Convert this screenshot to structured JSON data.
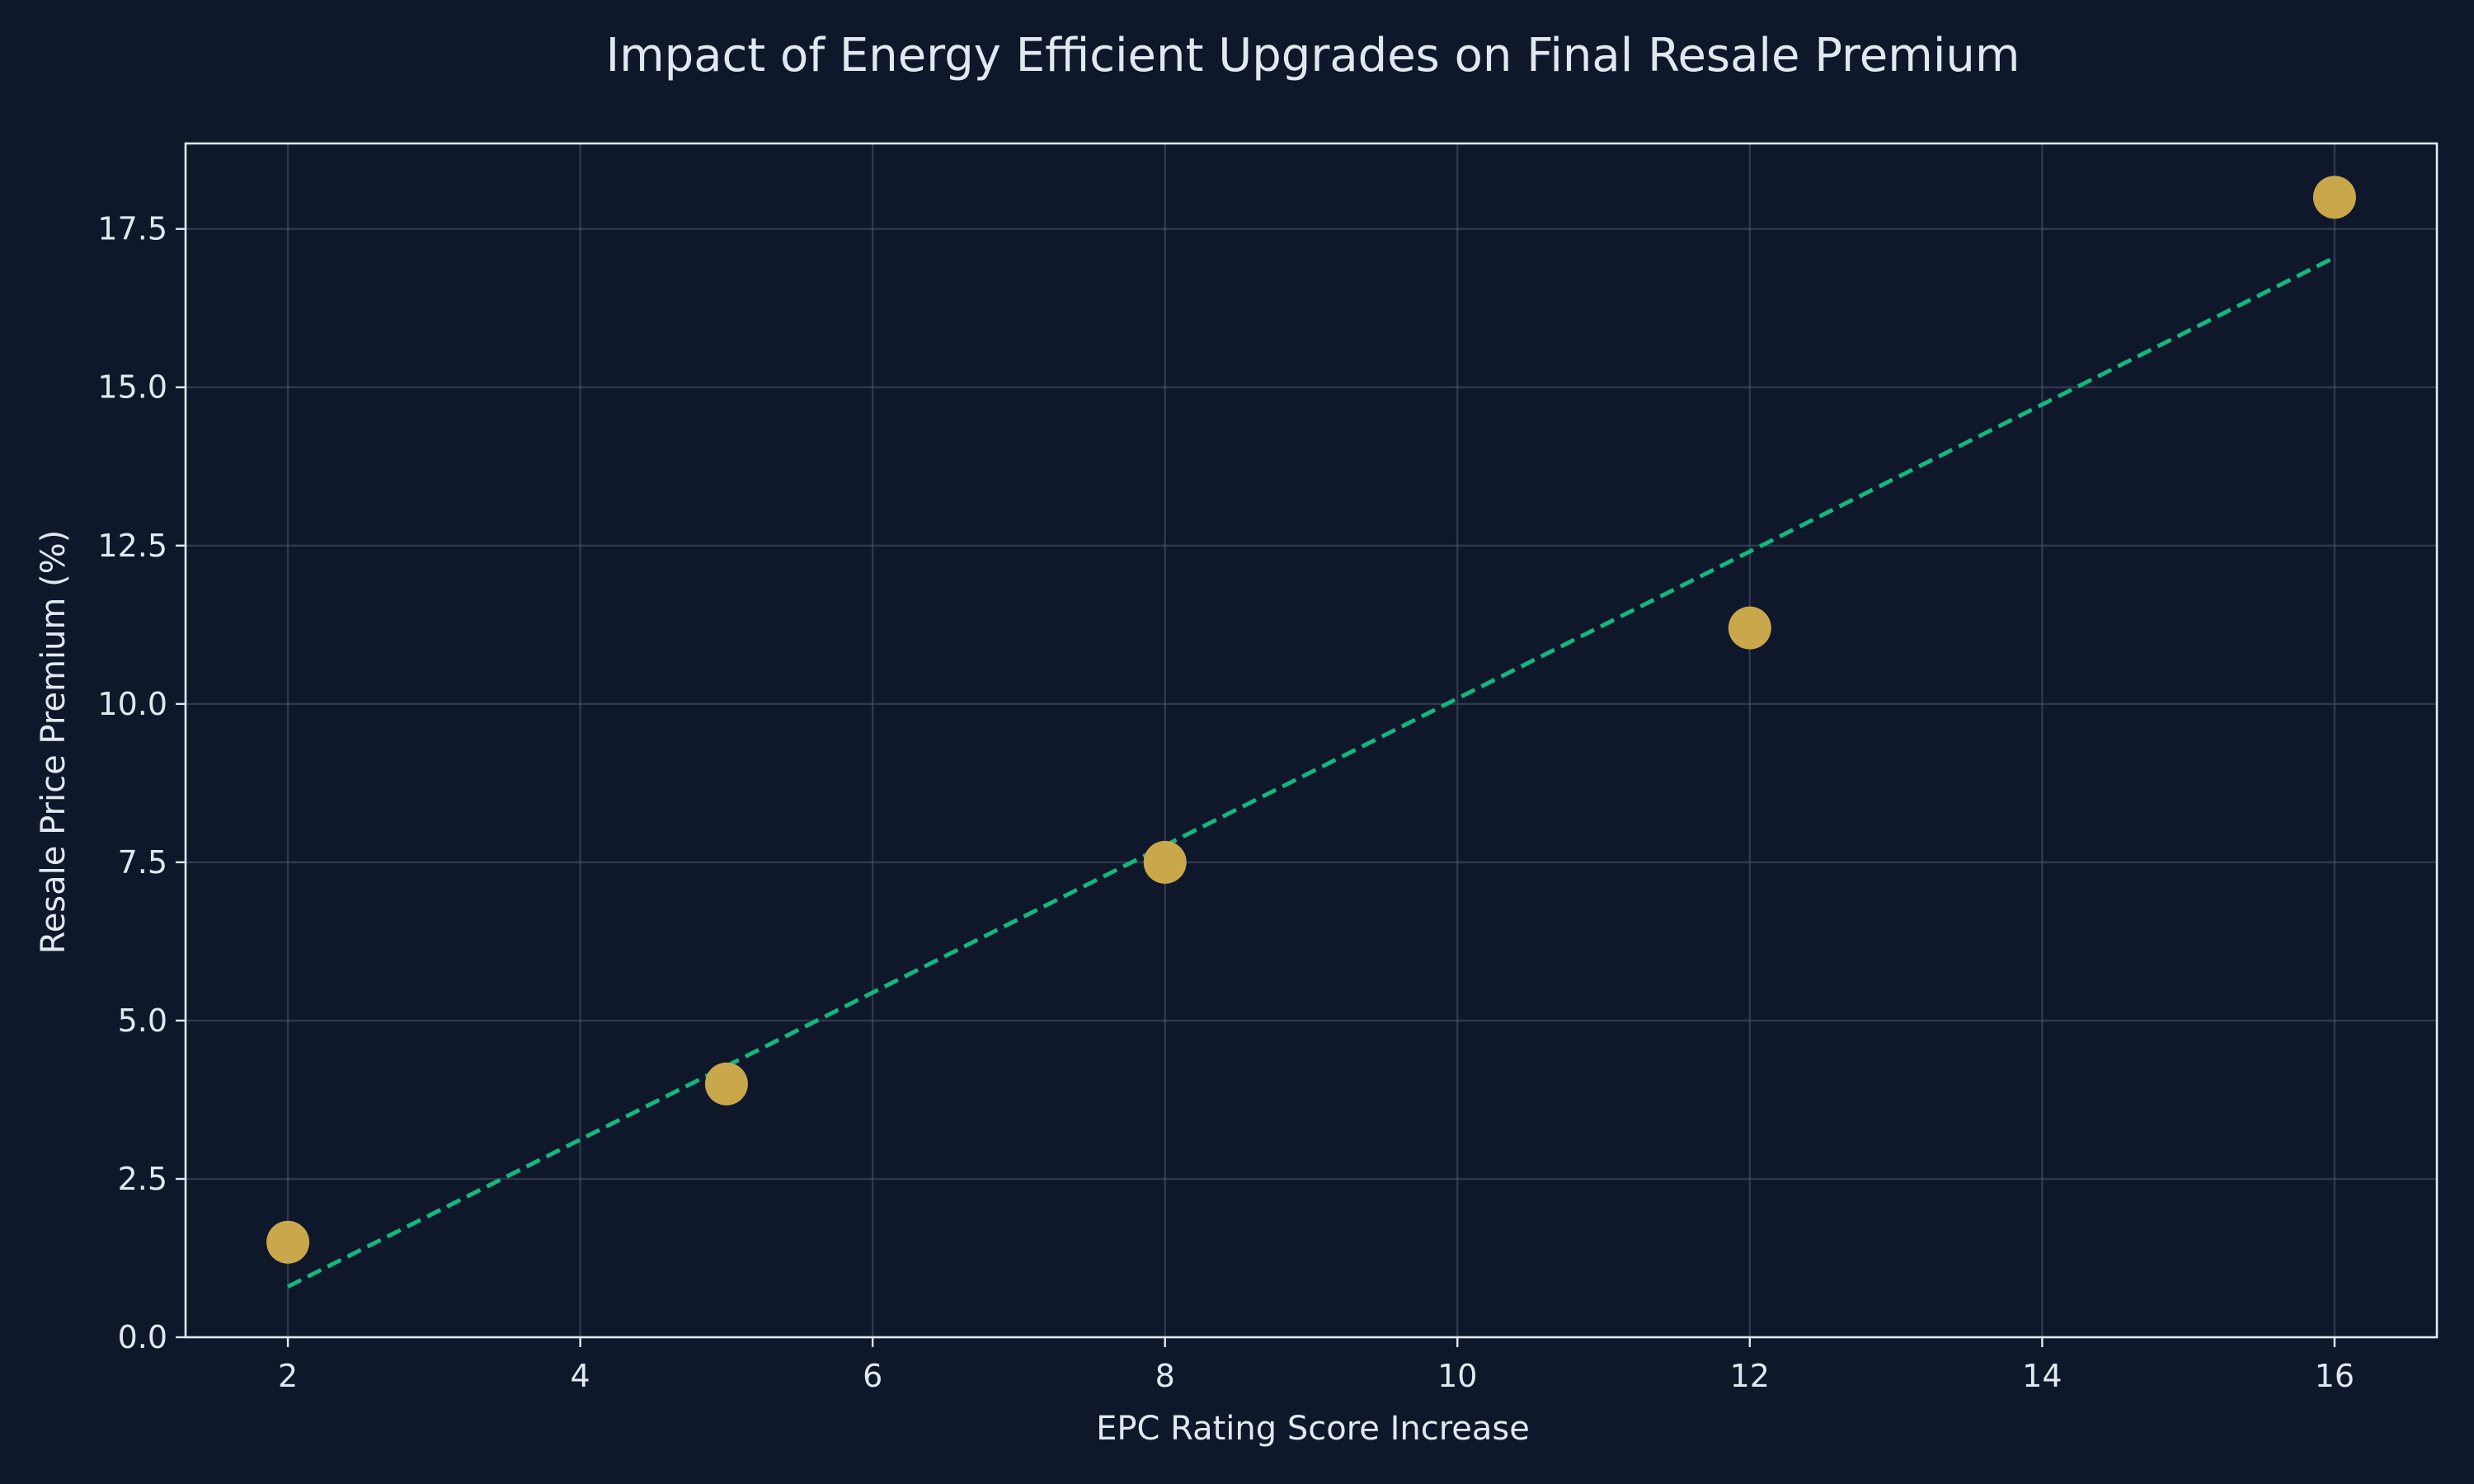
{
  "chart_data": {
    "type": "scatter",
    "title": "Impact of Energy Efficient Upgrades on Final Resale Premium",
    "xlabel": "EPC Rating Score Increase",
    "ylabel": "Resale Price Premium (%)",
    "xlim": [
      1.3,
      16.7
    ],
    "ylim": [
      0.0,
      18.85
    ],
    "x_ticks": [
      2,
      4,
      6,
      8,
      10,
      12,
      14,
      16
    ],
    "x_tick_labels": [
      "2",
      "4",
      "6",
      "8",
      "10",
      "12",
      "14",
      "16"
    ],
    "y_ticks": [
      0.0,
      2.5,
      5.0,
      7.5,
      10.0,
      12.5,
      15.0,
      17.5
    ],
    "y_tick_labels": [
      "0.0",
      "2.5",
      "5.0",
      "7.5",
      "10.0",
      "12.5",
      "15.0",
      "17.5"
    ],
    "grid": true,
    "series": [
      {
        "type": "scatter",
        "x": [
          2,
          5,
          8,
          12,
          16
        ],
        "y": [
          1.5,
          4.0,
          7.5,
          11.2,
          18.0
        ],
        "color": "#c9a84c"
      },
      {
        "type": "line",
        "style": "dashed",
        "x": [
          2,
          16
        ],
        "y": [
          0.8,
          17.05
        ],
        "color": "#10b981"
      }
    ],
    "colors": {
      "background": "#0f172a",
      "text": "#e2e8f0",
      "grid": "#475569",
      "frame": "#e2e8f0"
    }
  }
}
